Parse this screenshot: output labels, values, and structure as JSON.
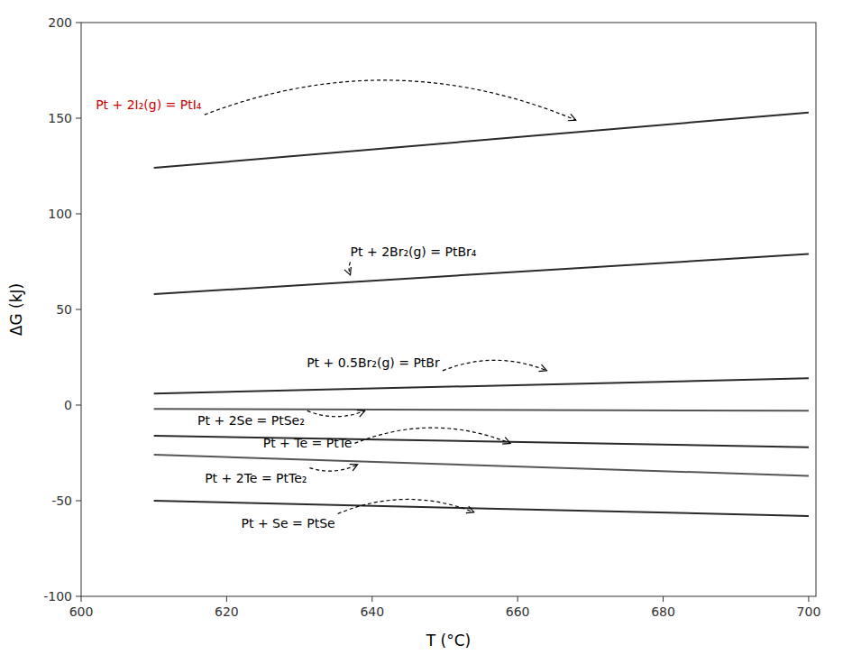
{
  "chart_data": {
    "type": "line",
    "xlabel": "T (°C)",
    "ylabel": "ΔG (kJ)",
    "xlim": [
      600,
      701
    ],
    "ylim": [
      -100,
      200
    ],
    "xticks": [
      600,
      620,
      640,
      660,
      680,
      700
    ],
    "yticks": [
      -100,
      -50,
      0,
      50,
      100,
      150,
      200
    ],
    "grid": false,
    "series": [
      {
        "x": [
          610,
          700
        ],
        "values": [
          124,
          153
        ],
        "color": "#2a2a2a"
      },
      {
        "x": [
          610,
          700
        ],
        "values": [
          58,
          79
        ],
        "color": "#2a2a2a"
      },
      {
        "x": [
          610,
          700
        ],
        "values": [
          6,
          14
        ],
        "color": "#2a2a2a"
      },
      {
        "x": [
          610,
          700
        ],
        "values": [
          -2,
          -3
        ],
        "color": "#555555"
      },
      {
        "x": [
          610,
          700
        ],
        "values": [
          -16,
          -22
        ],
        "color": "#2a2a2a"
      },
      {
        "x": [
          610,
          700
        ],
        "values": [
          -26,
          -37
        ],
        "color": "#555555"
      },
      {
        "x": [
          610,
          700
        ],
        "values": [
          -50,
          -58
        ],
        "color": "#2a2a2a"
      }
    ],
    "annotations": [
      {
        "text": "Pt + 2I₂(g) = PtI₄",
        "text_x": 602,
        "text_y": 157,
        "x": 668,
        "y": 149,
        "color": "#cc0000"
      },
      {
        "text": "Pt + 2Br₂(g) = PtBr₄",
        "text_x": 637,
        "text_y": 80,
        "x": 637,
        "y": 68,
        "color": "#000000"
      },
      {
        "text": "Pt + 0.5Br₂(g) = PtBr",
        "text_x": 631,
        "text_y": 22,
        "x": 664,
        "y": 18,
        "color": "#000000"
      },
      {
        "text": "Pt + 2Se = PtSe₂",
        "text_x": 616,
        "text_y": -8,
        "x": 639,
        "y": -3,
        "color": "#000000"
      },
      {
        "text": "Pt + Te = PtTe",
        "text_x": 625,
        "text_y": -20,
        "x": 659,
        "y": -20,
        "color": "#000000"
      },
      {
        "text": "Pt + 2Te = PtTe₂",
        "text_x": 617,
        "text_y": -38,
        "x": 638,
        "y": -31,
        "color": "#000000"
      },
      {
        "text": "Pt + Se = PtSe",
        "text_x": 622,
        "text_y": -62,
        "x": 654,
        "y": -56,
        "color": "#000000"
      }
    ]
  }
}
